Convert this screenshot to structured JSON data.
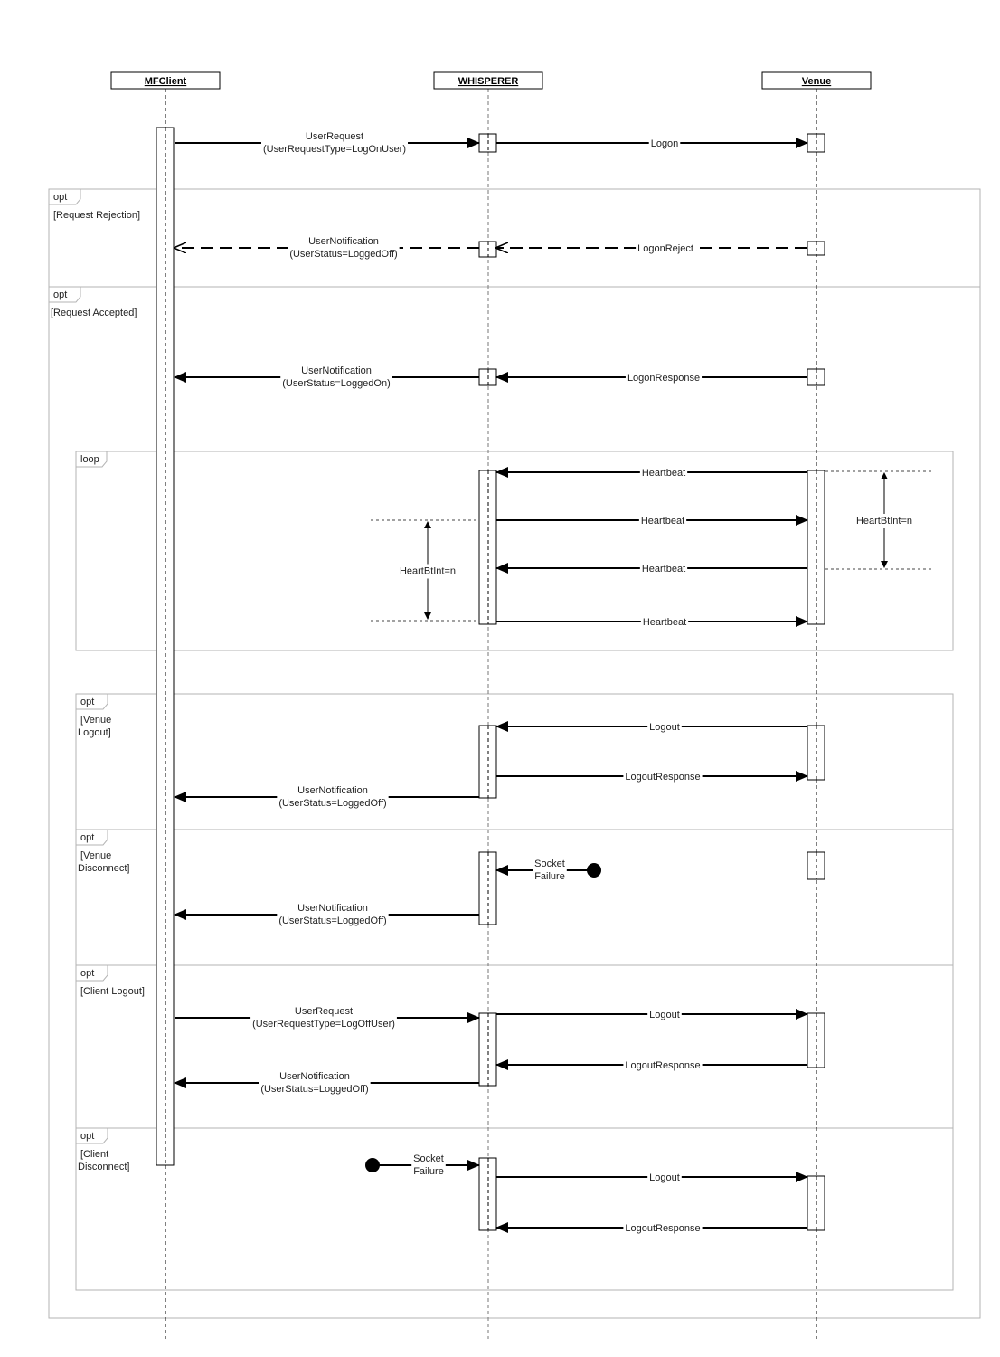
{
  "participants": [
    {
      "id": "client",
      "name": "MFClient"
    },
    {
      "id": "whisperer",
      "name": "WHISPERER"
    },
    {
      "id": "venue",
      "name": "Venue"
    }
  ],
  "fragments": [
    {
      "operator": "opt",
      "guard": [
        "[Request Rejection]"
      ]
    },
    {
      "operator": "opt",
      "guard": [
        "[Request Accepted]"
      ]
    },
    {
      "operator": "loop",
      "guard": []
    },
    {
      "operator": "opt",
      "guard": [
        "[Venue",
        "Logout]"
      ]
    },
    {
      "operator": "opt",
      "guard": [
        "[Venue",
        "Disconnect]"
      ]
    },
    {
      "operator": "opt",
      "guard": [
        "[Client Logout]"
      ]
    },
    {
      "operator": "opt",
      "guard": [
        "[Client",
        "Disconnect]"
      ]
    }
  ],
  "messages": [
    {
      "from": "client",
      "to": "whisperer",
      "label": [
        "UserRequest",
        "(UserRequestType=LogOnUser)"
      ],
      "style": "sync"
    },
    {
      "from": "whisperer",
      "to": "venue",
      "label": [
        "Logon"
      ],
      "style": "sync"
    },
    {
      "from": "venue",
      "to": "whisperer",
      "label": [
        "LogonReject"
      ],
      "style": "reply"
    },
    {
      "from": "whisperer",
      "to": "client",
      "label": [
        "UserNotification",
        "(UserStatus=LoggedOff)"
      ],
      "style": "reply"
    },
    {
      "from": "venue",
      "to": "whisperer",
      "label": [
        "LogonResponse"
      ],
      "style": "sync"
    },
    {
      "from": "whisperer",
      "to": "client",
      "label": [
        "UserNotification",
        "(UserStatus=LoggedOn)"
      ],
      "style": "sync"
    },
    {
      "from": "venue",
      "to": "whisperer",
      "label": [
        "Heartbeat"
      ],
      "style": "sync"
    },
    {
      "from": "whisperer",
      "to": "venue",
      "label": [
        "Heartbeat"
      ],
      "style": "sync"
    },
    {
      "from": "venue",
      "to": "whisperer",
      "label": [
        "Heartbeat"
      ],
      "style": "sync"
    },
    {
      "from": "whisperer",
      "to": "venue",
      "label": [
        "Heartbeat"
      ],
      "style": "sync"
    },
    {
      "from": "venue",
      "to": "whisperer",
      "label": [
        "Logout"
      ],
      "style": "sync"
    },
    {
      "from": "whisperer",
      "to": "venue",
      "label": [
        "LogoutResponse"
      ],
      "style": "sync"
    },
    {
      "from": "whisperer",
      "to": "client",
      "label": [
        "UserNotification",
        "(UserStatus=LoggedOff)"
      ],
      "style": "sync"
    },
    {
      "from": "found",
      "to": "whisperer",
      "label": [
        "Socket",
        "Failure"
      ],
      "style": "found"
    },
    {
      "from": "whisperer",
      "to": "client",
      "label": [
        "UserNotification",
        "(UserStatus=LoggedOff)"
      ],
      "style": "sync"
    },
    {
      "from": "client",
      "to": "whisperer",
      "label": [
        "UserRequest",
        "(UserRequestType=LogOffUser)"
      ],
      "style": "sync"
    },
    {
      "from": "whisperer",
      "to": "venue",
      "label": [
        "Logout"
      ],
      "style": "sync"
    },
    {
      "from": "venue",
      "to": "whisperer",
      "label": [
        "LogoutResponse"
      ],
      "style": "sync"
    },
    {
      "from": "whisperer",
      "to": "client",
      "label": [
        "UserNotification",
        "(UserStatus=LoggedOff)"
      ],
      "style": "sync"
    },
    {
      "from": "found",
      "to": "whisperer",
      "label": [
        "Socket",
        "Failure"
      ],
      "style": "found"
    },
    {
      "from": "whisperer",
      "to": "venue",
      "label": [
        "Logout"
      ],
      "style": "sync"
    },
    {
      "from": "venue",
      "to": "whisperer",
      "label": [
        "LogoutResponse"
      ],
      "style": "sync"
    }
  ],
  "annotations": [
    {
      "label": "HeartBtInt=n",
      "side": "whisperer"
    },
    {
      "label": "HeartBtInt=n",
      "side": "venue"
    }
  ],
  "colors": {
    "line": "#000000",
    "frame": "#b3b3b3",
    "lifeline": "#555555"
  }
}
